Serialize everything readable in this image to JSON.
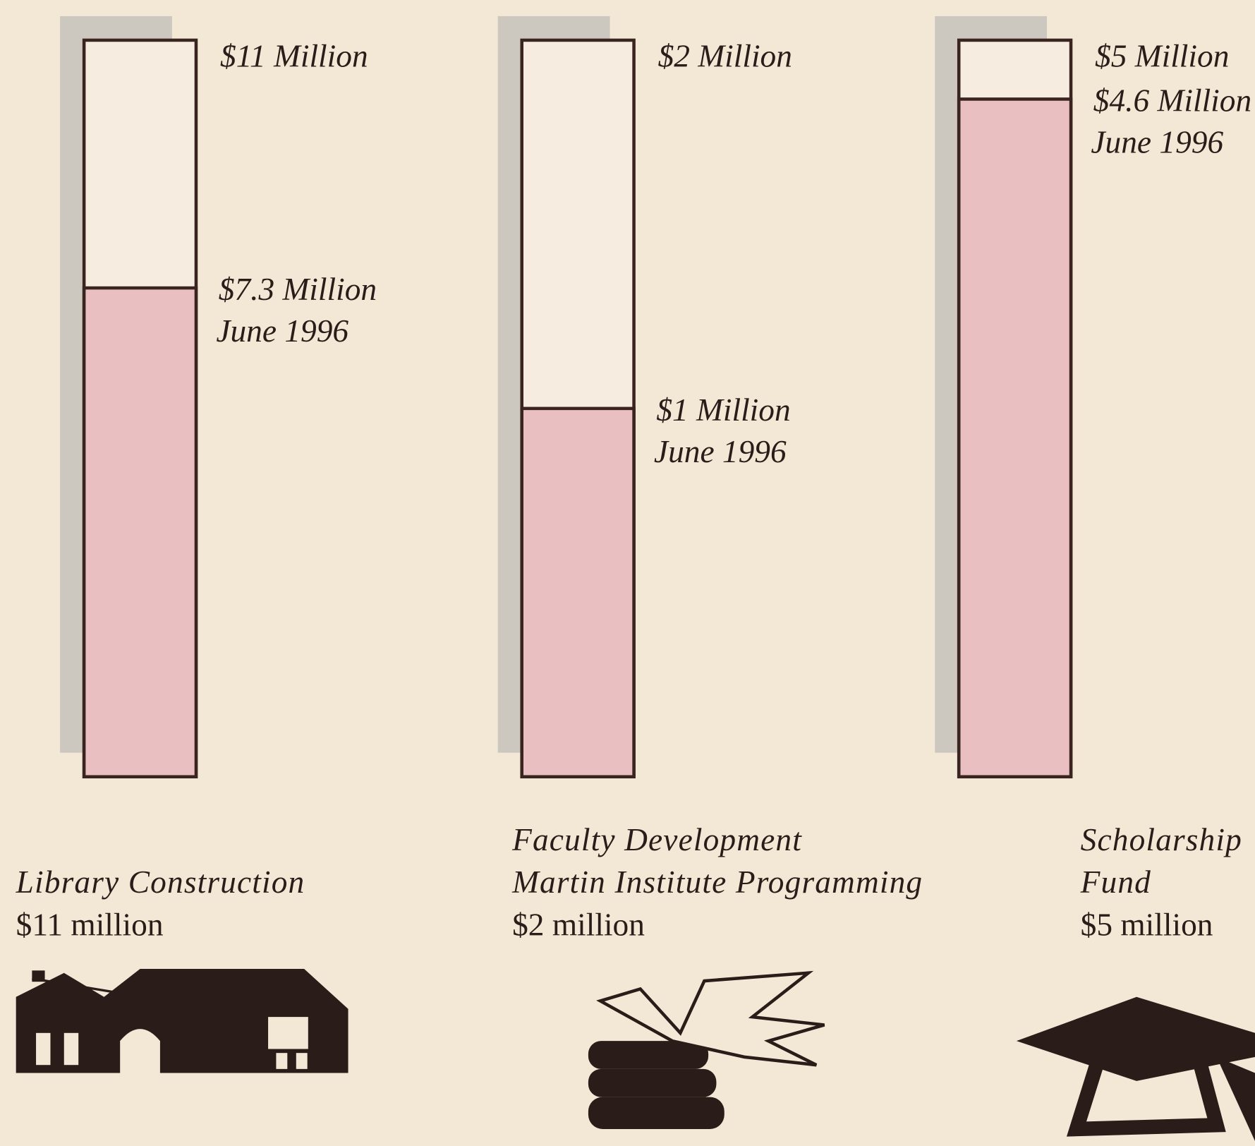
{
  "chart_data": [
    {
      "type": "progress",
      "title": [
        "Library Construction"
      ],
      "caption": "$11 million",
      "values": [
        11,
        7.3
      ],
      "value_labels": [
        "$11 Million",
        "$7.3 Million"
      ],
      "date": "June 1996",
      "ylim": [
        0,
        11
      ],
      "color": "#e9bfc2"
    },
    {
      "type": "progress",
      "title": [
        "Faculty Development",
        "Martin Institute Programming"
      ],
      "caption": "$2 million",
      "values": [
        2,
        1
      ],
      "value_labels": [
        "$2 Million",
        "$1 Million"
      ],
      "date": "June 1996",
      "ylim": [
        0,
        2
      ],
      "color": "#e9bfc2"
    },
    {
      "type": "progress",
      "title": [
        "Scholarship",
        "Fund"
      ],
      "caption": "$5 million",
      "values": [
        5,
        4.6
      ],
      "value_labels": [
        "$5 Million",
        "$4.6 Million"
      ],
      "date": "June 1996",
      "ylim": [
        0,
        5
      ],
      "color": "#e9bfc2"
    }
  ]
}
